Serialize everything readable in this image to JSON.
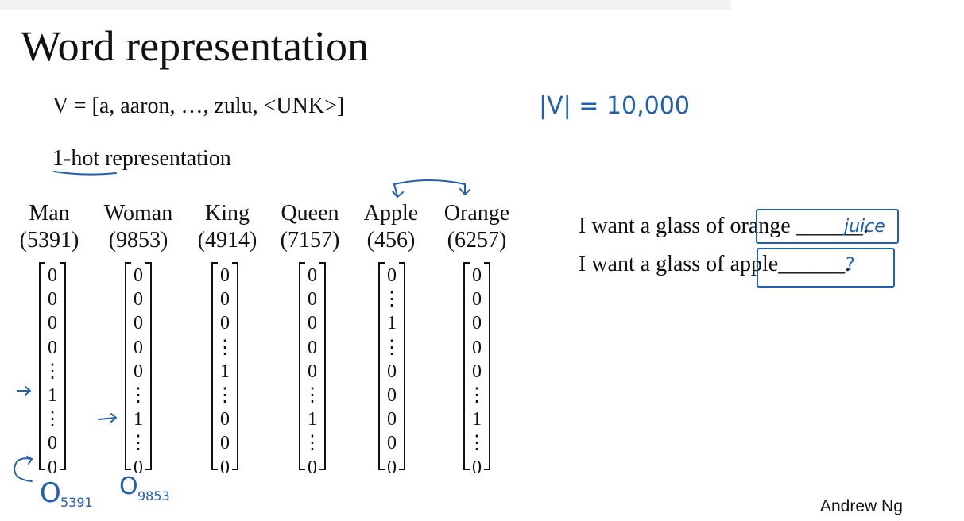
{
  "title": "Word representation",
  "vocabulary_line": "V = [a, aaron, …, zulu, <UNK>]",
  "one_hot_heading": "1-hot representation",
  "words": [
    {
      "word": "Man",
      "index": "(5391)",
      "vector": [
        "0",
        "0",
        "0",
        "0",
        "⋮",
        "1",
        "⋮",
        "0",
        "0"
      ]
    },
    {
      "word": "Woman",
      "index": "(9853)",
      "vector": [
        "0",
        "0",
        "0",
        "0",
        "0",
        "⋮",
        "1",
        "⋮",
        "0"
      ]
    },
    {
      "word": "King",
      "index": "(4914)",
      "vector": [
        "0",
        "0",
        "0",
        "⋮",
        "1",
        "⋮",
        "0",
        "0",
        "0"
      ]
    },
    {
      "word": "Queen",
      "index": "(7157)",
      "vector": [
        "0",
        "0",
        "0",
        "0",
        "0",
        "⋮",
        "1",
        "⋮",
        "0"
      ]
    },
    {
      "word": "Apple",
      "index": "(456)",
      "vector": [
        "0",
        "⋮",
        "1",
        "⋮",
        "0",
        "0",
        "0",
        "0",
        "0"
      ]
    },
    {
      "word": "Orange",
      "index": "(6257)",
      "vector": [
        "0",
        "0",
        "0",
        "0",
        "0",
        "⋮",
        "1",
        "⋮",
        "0"
      ]
    }
  ],
  "sentences": [
    {
      "prefix": "I want a glass of ",
      "word": "orange",
      "blank": "______."
    },
    {
      "prefix": "I want a glass of ",
      "word": "apple",
      "blank": "______."
    }
  ],
  "annotations": {
    "vocab_size": "|V| = 10,000",
    "juice": "juice",
    "question": "?",
    "o_man_main": "O",
    "o_man_sub": "5391",
    "o_woman_main": "O",
    "o_woman_sub": "9853"
  },
  "credit": "Andrew Ng",
  "colors": {
    "ink": "#1f5fb5",
    "text": "#111111",
    "background": "#ffffff"
  }
}
